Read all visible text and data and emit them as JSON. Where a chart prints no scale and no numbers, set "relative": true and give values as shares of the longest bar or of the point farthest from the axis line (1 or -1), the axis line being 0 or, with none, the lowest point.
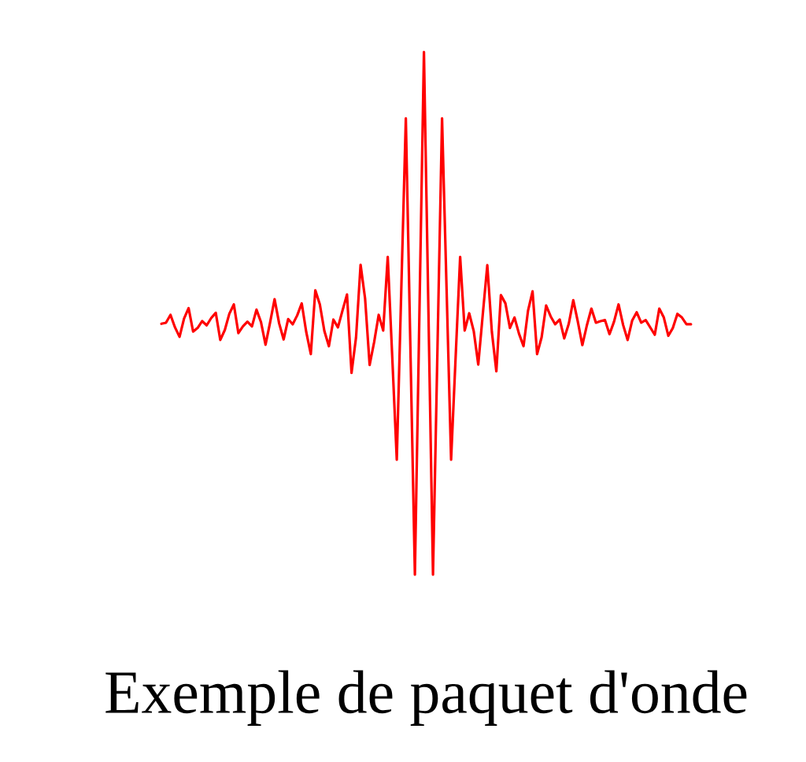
{
  "chart_data": {
    "type": "line",
    "title": "Exemple de paquet d'onde",
    "relative": true,
    "color": "#ff0000",
    "marker": "none",
    "line_style": "solid",
    "categories": [
      null,
      null,
      null,
      null,
      null,
      null,
      null,
      null,
      null,
      null,
      null,
      null,
      null,
      null,
      null,
      null,
      null,
      null,
      null,
      null,
      null,
      null,
      null,
      null,
      null,
      null,
      null,
      null,
      null,
      null,
      null,
      null,
      null,
      null,
      null,
      null,
      null,
      null,
      null,
      null,
      null,
      null,
      null,
      null,
      null,
      null,
      null,
      null,
      null,
      null,
      null,
      null,
      null,
      null,
      null,
      null,
      null,
      null,
      null,
      null,
      null,
      null,
      null,
      null,
      null,
      null,
      null,
      null,
      null,
      null,
      null,
      null,
      null,
      null,
      null,
      null,
      null,
      null,
      null,
      null,
      null,
      null,
      null,
      null,
      null,
      null,
      null,
      null,
      null,
      null,
      null,
      null,
      null,
      null,
      null,
      null,
      null,
      null,
      null,
      null,
      null,
      null,
      null,
      null,
      null,
      null,
      null,
      null,
      null,
      null,
      null,
      null,
      null,
      null,
      null,
      null,
      null,
      null
    ],
    "values": [
      0.48,
      0.482,
      0.497,
      0.473,
      0.455,
      0.49,
      0.51,
      0.465,
      0.472,
      0.485,
      0.477,
      0.491,
      0.501,
      0.449,
      0.468,
      0.499,
      0.517,
      0.462,
      0.475,
      0.484,
      0.475,
      0.507,
      0.483,
      0.44,
      0.482,
      0.527,
      0.481,
      0.45,
      0.489,
      0.479,
      0.496,
      0.519,
      0.464,
      0.422,
      0.544,
      0.517,
      0.466,
      0.437,
      0.488,
      0.473,
      0.505,
      0.536,
      0.386,
      0.454,
      0.593,
      0.528,
      0.401,
      0.445,
      0.497,
      0.467,
      0.608,
      0.416,
      0.22,
      0.547,
      0.873,
      0.437,
      0,
      0.5,
      1,
      0.5,
      0,
      0.437,
      0.873,
      0.547,
      0.22,
      0.416,
      0.608,
      0.467,
      0.5,
      0.466,
      0.402,
      0.498,
      0.592,
      0.465,
      0.389,
      0.535,
      0.519,
      0.472,
      0.492,
      0.461,
      0.437,
      0.505,
      0.542,
      0.422,
      0.454,
      0.515,
      0.494,
      0.479,
      0.488,
      0.452,
      0.48,
      0.525,
      0.484,
      0.439,
      0.477,
      0.509,
      0.482,
      0.485,
      0.487,
      0.46,
      0.484,
      0.517,
      0.478,
      0.449,
      0.486,
      0.502,
      0.482,
      0.487,
      0.473,
      0.459,
      0.509,
      0.492,
      0.457,
      0.472,
      0.499,
      0.492,
      0.479,
      0.479
    ]
  }
}
